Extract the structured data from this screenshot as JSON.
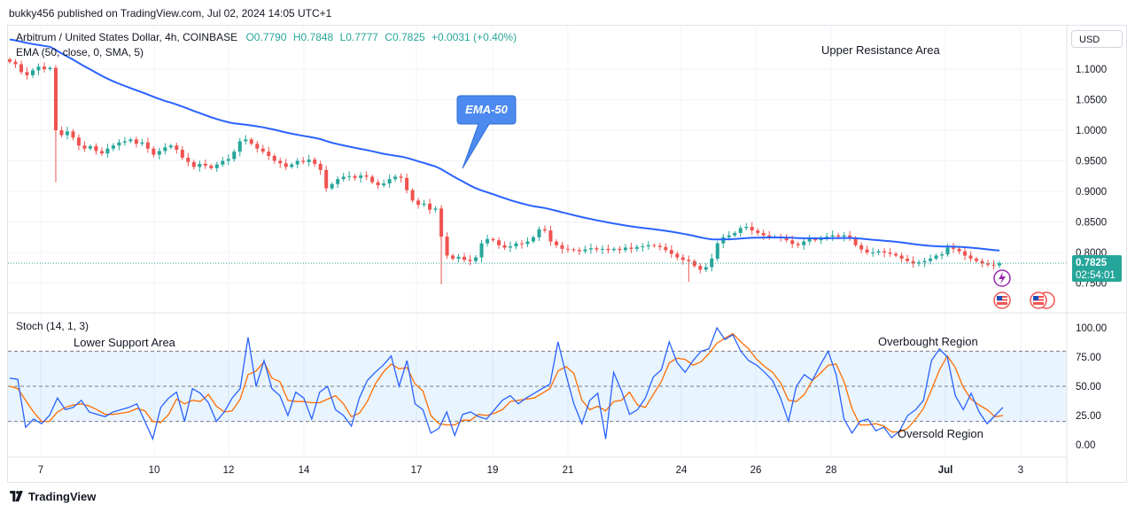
{
  "header": {
    "publisher": "bukky456 published on TradingView.com, Jul 02, 2024 14:05 UTC+1"
  },
  "legend": {
    "symbol": "Arbitrum / United States Dollar, 4h, COINBASE",
    "open": "O0.7790",
    "high": "H0.7848",
    "low": "L0.7777",
    "close": "C0.7825",
    "change": "+0.0031 (+0.40%)",
    "ema_label": "EMA (50, close, 0, SMA, 5)",
    "stoch_label": "Stoch (14, 1, 3)"
  },
  "currency_button": "USD",
  "colors": {
    "up": "#26a69a",
    "down": "#ef5350",
    "ema": "#2962ff",
    "stoch_k": "#2962ff",
    "stoch_d": "#ff6d00",
    "band_fill": "#2196f3",
    "price_tag": "#26a69a"
  },
  "annotations": {
    "upper_resistance": "Upper Resistance Area",
    "ema_callout": "EMA-50",
    "lower_support": "Lower Support Area",
    "overbought": "Overbought Region",
    "oversold": "Oversold Region"
  },
  "price_tag": {
    "value": "0.7825",
    "countdown": "02:54:01"
  },
  "footer": {
    "brand": "TradingView"
  },
  "chart_data": [
    {
      "type": "candlestick",
      "title": "Arbitrum / United States Dollar, 4h, COINBASE",
      "x_ticks": [
        "7",
        "10",
        "12",
        "14",
        "17",
        "19",
        "21",
        "24",
        "26",
        "28",
        "Jul",
        "3"
      ],
      "y_ticks": [
        "1.1000",
        "1.0500",
        "1.0000",
        "0.9500",
        "0.9000",
        "0.8500",
        "0.8000",
        "0.7500"
      ],
      "ylim": [
        0.745,
        1.14
      ],
      "last_price": 0.7825,
      "close_series": [
        1.112,
        1.108,
        1.095,
        1.09,
        1.098,
        1.104,
        1.1,
        1.102,
        1.0,
        0.992,
        0.998,
        0.988,
        0.975,
        0.97,
        0.974,
        0.966,
        0.962,
        0.97,
        0.975,
        0.98,
        0.982,
        0.985,
        0.978,
        0.98,
        0.97,
        0.96,
        0.966,
        0.972,
        0.975,
        0.968,
        0.955,
        0.948,
        0.94,
        0.945,
        0.942,
        0.938,
        0.944,
        0.95,
        0.953,
        0.965,
        0.982,
        0.985,
        0.978,
        0.97,
        0.965,
        0.958,
        0.95,
        0.946,
        0.94,
        0.944,
        0.95,
        0.948,
        0.952,
        0.945,
        0.935,
        0.905,
        0.912,
        0.92,
        0.924,
        0.925,
        0.922,
        0.926,
        0.924,
        0.915,
        0.91,
        0.913,
        0.92,
        0.924,
        0.922,
        0.902,
        0.885,
        0.878,
        0.88,
        0.87,
        0.872,
        0.826,
        0.795,
        0.79,
        0.793,
        0.788,
        0.786,
        0.792,
        0.815,
        0.822,
        0.82,
        0.812,
        0.808,
        0.81,
        0.815,
        0.814,
        0.818,
        0.825,
        0.838,
        0.836,
        0.818,
        0.812,
        0.806,
        0.805,
        0.804,
        0.802,
        0.805,
        0.807,
        0.805,
        0.806,
        0.804,
        0.806,
        0.804,
        0.808,
        0.806,
        0.809,
        0.81,
        0.812,
        0.811,
        0.809,
        0.804,
        0.798,
        0.792,
        0.788,
        0.786,
        0.778,
        0.772,
        0.776,
        0.79,
        0.815,
        0.825,
        0.828,
        0.832,
        0.84,
        0.842,
        0.836,
        0.832,
        0.828,
        0.826,
        0.826,
        0.824,
        0.82,
        0.814,
        0.812,
        0.818,
        0.822,
        0.82,
        0.823,
        0.826,
        0.828,
        0.826,
        0.828,
        0.824,
        0.812,
        0.805,
        0.8,
        0.8,
        0.802,
        0.8,
        0.798,
        0.795,
        0.79,
        0.786,
        0.782,
        0.784,
        0.786,
        0.79,
        0.795,
        0.797,
        0.808,
        0.806,
        0.802,
        0.795,
        0.79,
        0.786,
        0.782,
        0.78,
        0.779,
        0.7825
      ],
      "ema_label": "EMA-50"
    },
    {
      "type": "line",
      "title": "Stoch (14, 1, 3)",
      "x_ticks": [
        "7",
        "10",
        "12",
        "14",
        "17",
        "19",
        "21",
        "24",
        "26",
        "28",
        "Jul",
        "3"
      ],
      "y_ticks": [
        "100.00",
        "75.00",
        "50.00",
        "25.00",
        "0.00"
      ],
      "ylim": [
        -4,
        104
      ],
      "bands": {
        "upper": 80,
        "middle": 50,
        "lower": 20
      },
      "series": [
        {
          "name": "%K",
          "values": [
            57,
            56,
            15,
            22,
            18,
            25,
            40,
            30,
            32,
            38,
            28,
            26,
            24,
            28,
            30,
            32,
            35,
            20,
            5,
            32,
            40,
            45,
            20,
            48,
            44,
            36,
            20,
            28,
            40,
            48,
            92,
            50,
            72,
            48,
            42,
            25,
            45,
            40,
            22,
            45,
            50,
            30,
            25,
            16,
            40,
            55,
            62,
            68,
            76,
            50,
            72,
            35,
            30,
            10,
            14,
            28,
            8,
            26,
            28,
            24,
            22,
            30,
            38,
            42,
            35,
            40,
            44,
            48,
            52,
            88,
            60,
            35,
            18,
            38,
            44,
            5,
            62,
            46,
            26,
            30,
            40,
            58,
            64,
            88,
            70,
            62,
            72,
            80,
            82,
            100,
            90,
            94,
            80,
            72,
            68,
            62,
            55,
            40,
            20,
            50,
            60,
            55,
            68,
            80,
            60,
            22,
            10,
            20,
            22,
            12,
            15,
            6,
            12,
            25,
            30,
            38,
            72,
            82,
            75,
            42,
            30,
            44,
            28,
            18,
            25,
            32
          ]
        },
        {
          "name": "%D",
          "values": [
            50,
            48,
            38,
            28,
            20,
            20,
            28,
            32,
            34,
            35,
            33,
            30,
            26,
            26,
            27,
            28,
            31,
            29,
            20,
            19,
            26,
            39,
            35,
            38,
            37,
            43,
            33,
            28,
            29,
            39,
            60,
            63,
            71,
            57,
            54,
            38,
            37,
            37,
            36,
            36,
            39,
            42,
            35,
            24,
            27,
            37,
            52,
            62,
            69,
            65,
            66,
            52,
            46,
            25,
            18,
            17,
            17,
            21,
            21,
            26,
            25,
            27,
            30,
            37,
            38,
            39,
            40,
            44,
            48,
            63,
            67,
            61,
            38,
            30,
            33,
            29,
            37,
            38,
            45,
            34,
            32,
            43,
            54,
            70,
            74,
            73,
            68,
            71,
            78,
            87,
            91,
            95,
            88,
            82,
            73,
            67,
            62,
            53,
            38,
            37,
            43,
            55,
            61,
            68,
            69,
            54,
            31,
            17,
            17,
            18,
            16,
            11,
            11,
            14,
            22,
            31,
            47,
            64,
            76,
            66,
            49,
            39,
            34,
            30,
            24,
            25
          ]
        }
      ]
    }
  ]
}
